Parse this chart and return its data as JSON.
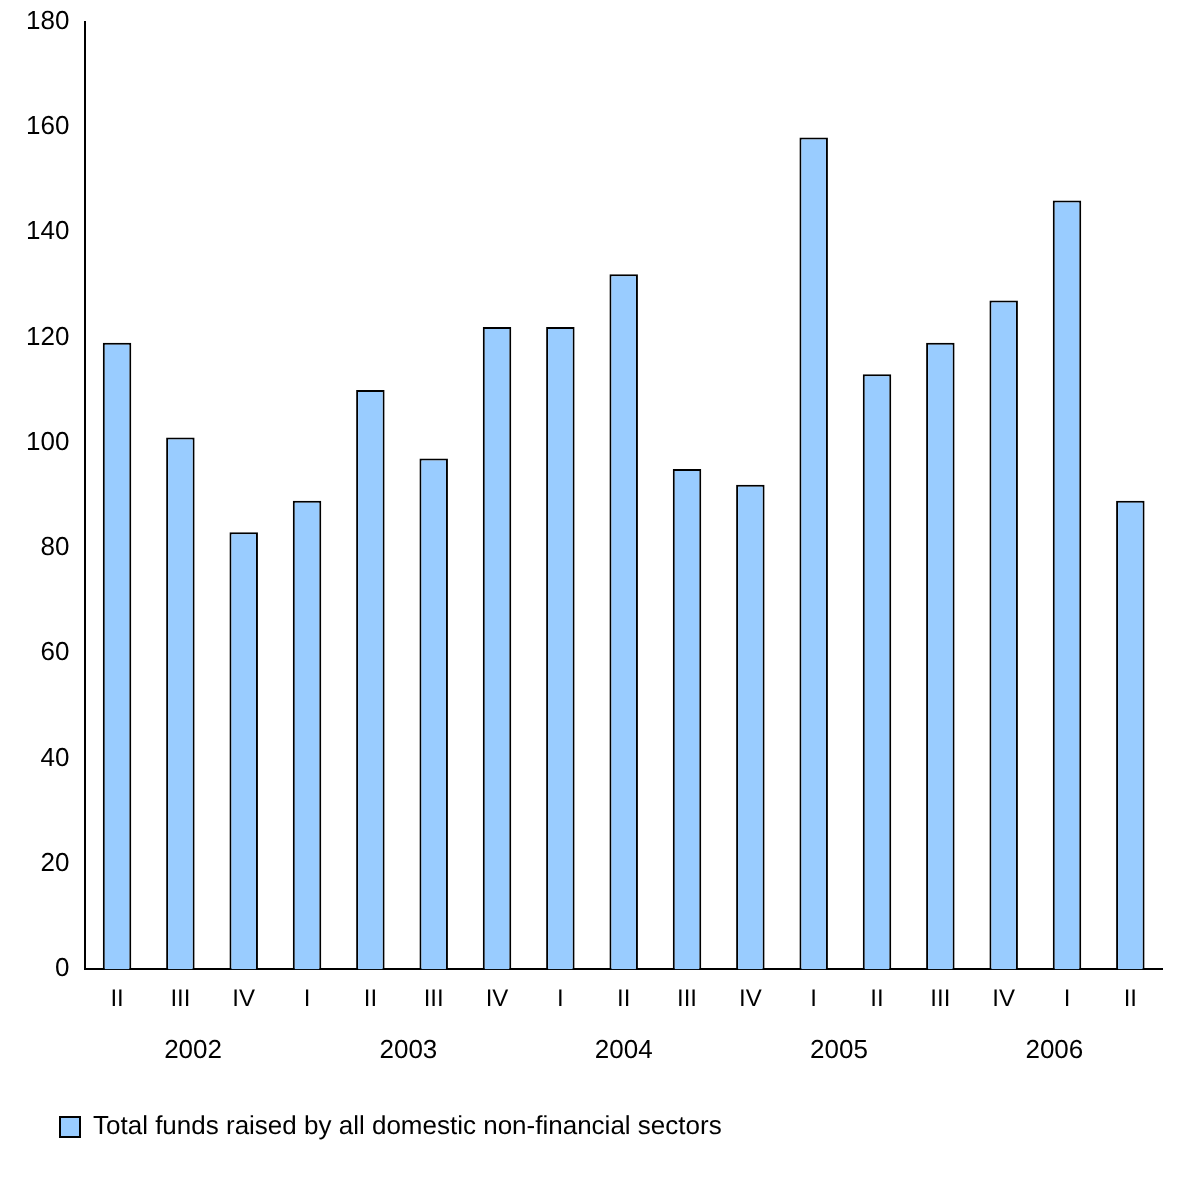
{
  "chart_data": {
    "type": "bar",
    "categories": [
      "II",
      "III",
      "IV",
      "I",
      "II",
      "III",
      "IV",
      "I",
      "II",
      "III",
      "IV",
      "I",
      "II",
      "III",
      "IV",
      "I",
      "II"
    ],
    "series": [
      {
        "name": "Total funds raised by all domestic non-financial sectors",
        "color": "#99ccff",
        "values": [
          119,
          101,
          83,
          89,
          110,
          97,
          122,
          122,
          132,
          95,
          92,
          158,
          113,
          119,
          127,
          146,
          89
        ]
      }
    ],
    "ylim": [
      0,
      180
    ],
    "yticks": [
      0,
      20,
      40,
      60,
      80,
      100,
      120,
      140,
      160,
      180
    ],
    "grid": false,
    "legend": "bottom left",
    "annotations": [
      "2002",
      "2003",
      "2004",
      "2005",
      "2006"
    ]
  }
}
